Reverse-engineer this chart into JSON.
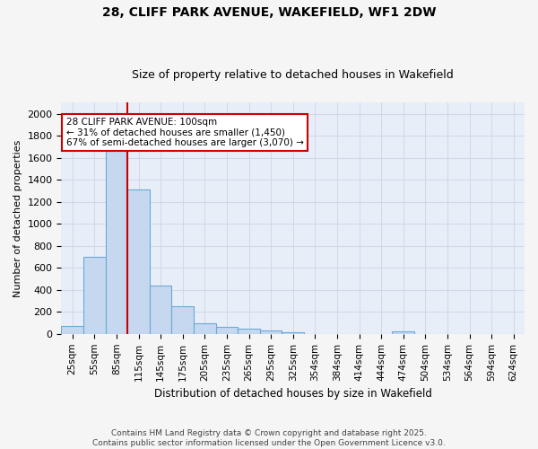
{
  "title": "28, CLIFF PARK AVENUE, WAKEFIELD, WF1 2DW",
  "subtitle": "Size of property relative to detached houses in Wakefield",
  "xlabel": "Distribution of detached houses by size in Wakefield",
  "ylabel": "Number of detached properties",
  "bar_color": "#c5d8ef",
  "bar_edge_color": "#6aaad4",
  "axes_bg_color": "#e8eef8",
  "fig_bg_color": "#f5f5f5",
  "grid_color": "#d0d8e8",
  "annotation_box_color": "#cc0000",
  "annotation_line1": "28 CLIFF PARK AVENUE: 100sqm",
  "annotation_line2": "← 31% of detached houses are smaller (1,450)",
  "annotation_line3": "67% of semi-detached houses are larger (3,070) →",
  "vline_color": "#cc0000",
  "vline_x": 2.5,
  "categories": [
    "25sqm",
    "55sqm",
    "85sqm",
    "115sqm",
    "145sqm",
    "175sqm",
    "205sqm",
    "235sqm",
    "265sqm",
    "295sqm",
    "325sqm",
    "354sqm",
    "384sqm",
    "414sqm",
    "444sqm",
    "474sqm",
    "504sqm",
    "534sqm",
    "564sqm",
    "594sqm",
    "624sqm"
  ],
  "values": [
    70,
    700,
    1660,
    1310,
    440,
    250,
    95,
    60,
    50,
    30,
    15,
    0,
    0,
    0,
    0,
    20,
    0,
    0,
    0,
    0,
    0
  ],
  "ylim": [
    0,
    2100
  ],
  "yticks": [
    0,
    200,
    400,
    600,
    800,
    1000,
    1200,
    1400,
    1600,
    1800,
    2000
  ],
  "footnote": "Contains HM Land Registry data © Crown copyright and database right 2025.\nContains public sector information licensed under the Open Government Licence v3.0."
}
